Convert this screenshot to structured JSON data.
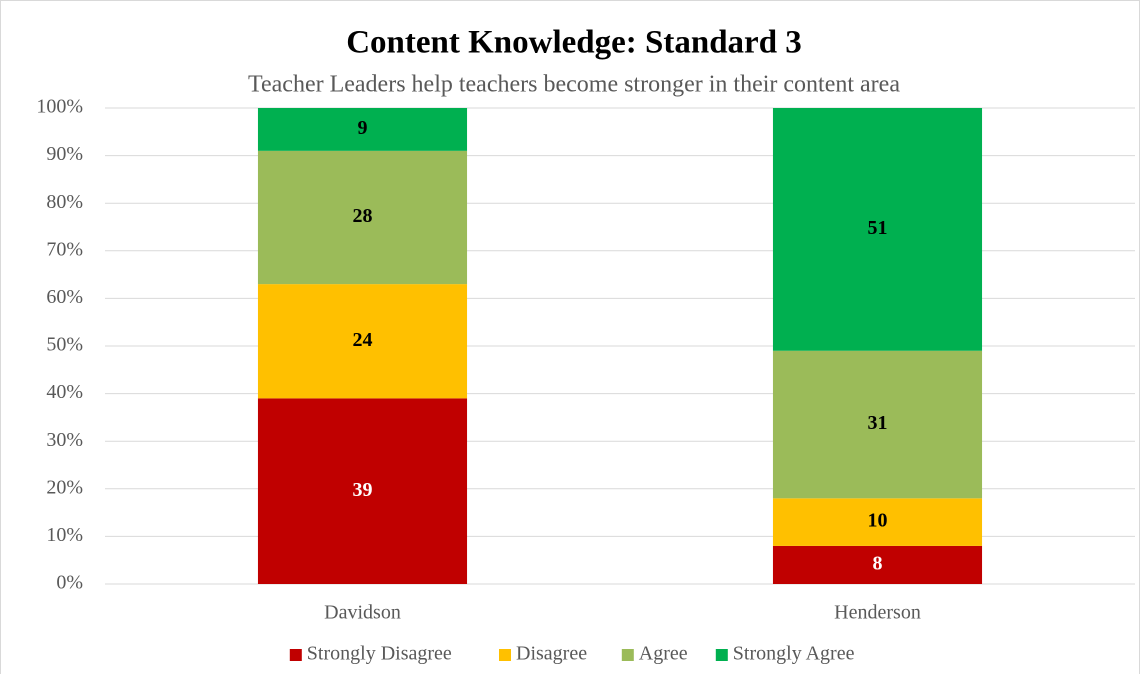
{
  "chart_data": {
    "type": "stacked_bar",
    "title": "Content Knowledge: Standard 3",
    "subtitle": "Teacher Leaders help teachers become stronger in their content area",
    "categories": [
      "Davidson",
      "Henderson"
    ],
    "series": [
      {
        "name": "Strongly Disagree",
        "color": "#c00000",
        "label_color": "#ffffff",
        "values": [
          39,
          8
        ]
      },
      {
        "name": "Disagree",
        "color": "#ffc000",
        "label_color": "#000000",
        "values": [
          24,
          10
        ]
      },
      {
        "name": "Agree",
        "color": "#9bbb59",
        "label_color": "#000000",
        "values": [
          28,
          31
        ]
      },
      {
        "name": "Strongly Agree",
        "color": "#00b050",
        "label_color": "#000000",
        "values": [
          9,
          51
        ]
      }
    ],
    "ylim": [
      0,
      100
    ],
    "yticks": [
      {
        "value": 0,
        "label": "0%"
      },
      {
        "value": 10,
        "label": "10%"
      },
      {
        "value": 20,
        "label": "20%"
      },
      {
        "value": 30,
        "label": "30%"
      },
      {
        "value": 40,
        "label": "40%"
      },
      {
        "value": 50,
        "label": "50%"
      },
      {
        "value": 60,
        "label": "60%"
      },
      {
        "value": 70,
        "label": "70%"
      },
      {
        "value": 80,
        "label": "80%"
      },
      {
        "value": 90,
        "label": "90%"
      },
      {
        "value": 100,
        "label": "100%"
      }
    ],
    "grid": true,
    "legend": "bottom"
  }
}
